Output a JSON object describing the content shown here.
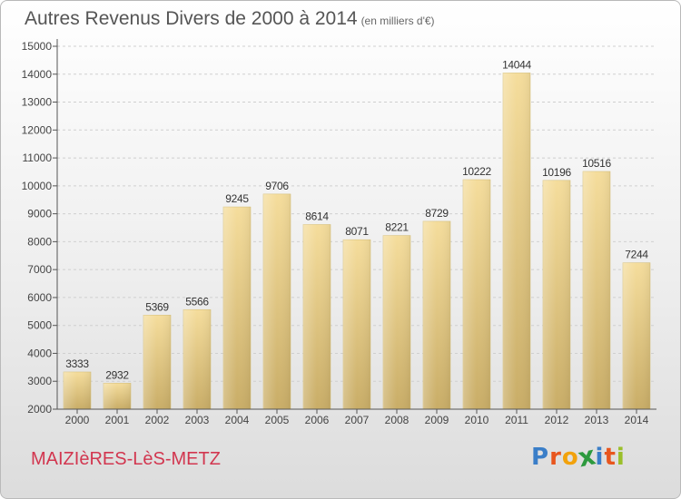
{
  "chart_data": {
    "type": "bar",
    "title": "Autres Revenus Divers de 2000 à 2014",
    "subtitle": "(en milliers d'€)",
    "categories": [
      "2000",
      "2001",
      "2002",
      "2003",
      "2004",
      "2005",
      "2006",
      "2007",
      "2008",
      "2009",
      "2010",
      "2011",
      "2012",
      "2013",
      "2014"
    ],
    "values": [
      3333,
      2932,
      5369,
      5566,
      9245,
      9706,
      8614,
      8071,
      8221,
      8729,
      10222,
      14044,
      10196,
      10516,
      7244
    ],
    "ylim": [
      2000,
      15000
    ],
    "yticks": [
      2000,
      3000,
      4000,
      5000,
      6000,
      7000,
      8000,
      9000,
      10000,
      11000,
      12000,
      13000,
      14000,
      15000
    ],
    "grid": true,
    "bar_color": "#e8cf8a"
  },
  "footer": {
    "place_name": "MAIZIèRES-LèS-METZ",
    "logo_letters": [
      {
        "ch": "P",
        "color": "#3a7ec8"
      },
      {
        "ch": "r",
        "color": "#e8561e"
      },
      {
        "ch": "o",
        "color": "#f2a20c"
      },
      {
        "ch": "x",
        "color": "#2d9a3e"
      },
      {
        "ch": "i",
        "color": "#3a7ec8"
      },
      {
        "ch": "t",
        "color": "#e8561e"
      },
      {
        "ch": "i",
        "color": "#9bbf2a"
      }
    ]
  }
}
